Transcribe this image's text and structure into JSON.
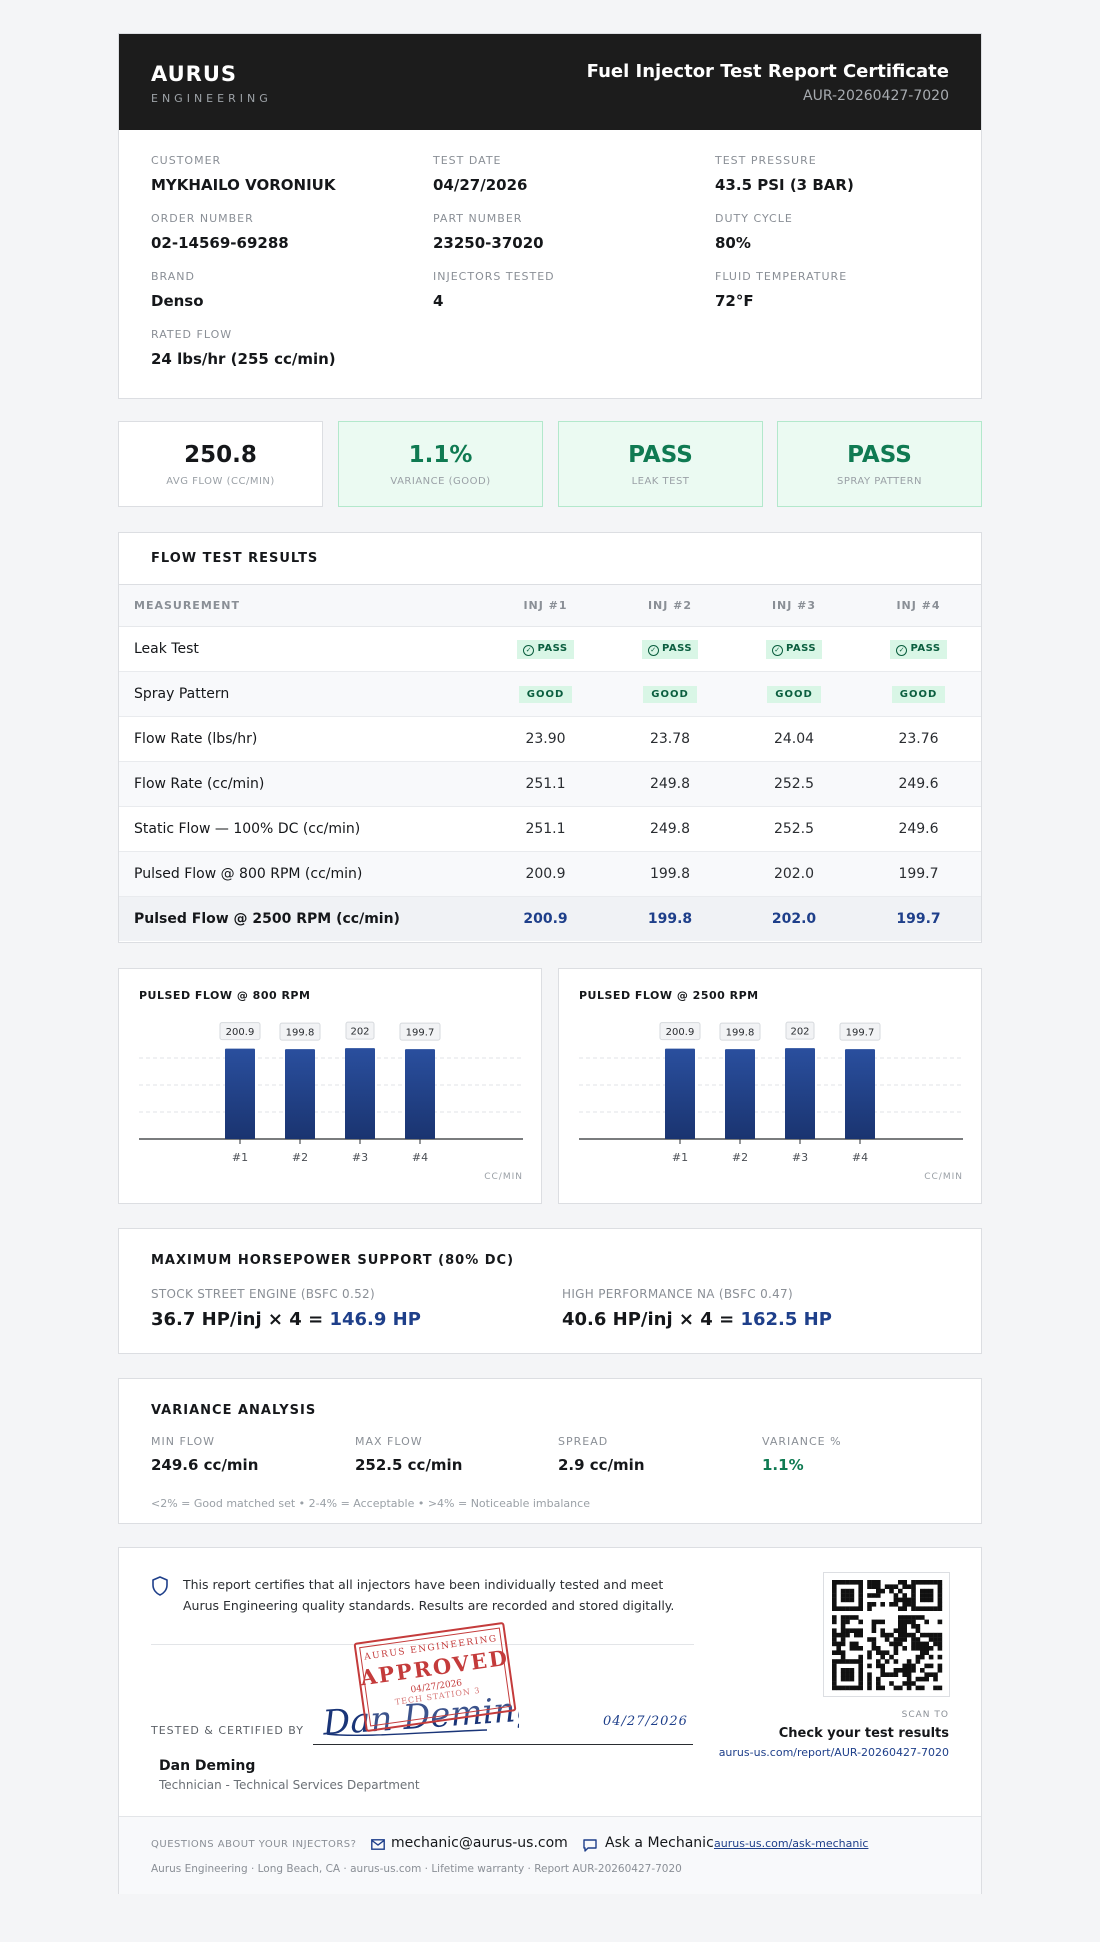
{
  "header": {
    "brand_name": "AURUS",
    "brand_sub": "ENGINEERING",
    "title": "Fuel Injector Test Report Certificate",
    "report_id": "AUR-20260427-7020"
  },
  "info": {
    "customer_label": "CUSTOMER",
    "customer": "MYKHAILO VORONIUK",
    "test_date_label": "TEST DATE",
    "test_date": "04/27/2026",
    "test_pressure_label": "TEST PRESSURE",
    "test_pressure": "43.5 PSI (3 BAR)",
    "order_label": "ORDER NUMBER",
    "order": "02-14569-69288",
    "part_label": "PART NUMBER",
    "part": "23250-37020",
    "duty_label": "DUTY CYCLE",
    "duty": "80%",
    "brand_label": "BRAND",
    "brand": "Denso",
    "injectors_label": "INJECTORS TESTED",
    "injectors": "4",
    "fluid_label": "FLUID TEMPERATURE",
    "fluid": "72°F",
    "rated_label": "RATED FLOW",
    "rated": "24 lbs/hr (255 cc/min)"
  },
  "summary": [
    {
      "value": "250.8",
      "label": "AVG FLOW (CC/MIN)"
    },
    {
      "value": "1.1%",
      "label": "VARIANCE (GOOD)"
    },
    {
      "value": "PASS",
      "label": "LEAK TEST"
    },
    {
      "value": "PASS",
      "label": "SPRAY PATTERN"
    }
  ],
  "flow": {
    "title": "FLOW TEST RESULTS",
    "headers": [
      "MEASUREMENT",
      "INJ #1",
      "INJ #2",
      "INJ #3",
      "INJ #4"
    ],
    "pass_text": "PASS",
    "good_text": "GOOD",
    "leak_label": "Leak Test",
    "spray_label": "Spray Pattern",
    "rows": [
      {
        "label": "Flow Rate (lbs/hr)",
        "values": [
          "23.90",
          "23.78",
          "24.04",
          "23.76"
        ]
      },
      {
        "label": "Flow Rate (cc/min)",
        "values": [
          "251.1",
          "249.8",
          "252.5",
          "249.6"
        ]
      },
      {
        "label": "Static Flow — 100% DC (cc/min)",
        "values": [
          "251.1",
          "249.8",
          "252.5",
          "249.6"
        ]
      },
      {
        "label": "Pulsed Flow @ 800 RPM (cc/min)",
        "values": [
          "200.9",
          "199.8",
          "202.0",
          "199.7"
        ]
      },
      {
        "label": "Pulsed Flow @ 2500 RPM (cc/min)",
        "values": [
          "200.9",
          "199.8",
          "202.0",
          "199.7"
        ]
      }
    ]
  },
  "chart_data": [
    {
      "type": "bar",
      "title": "PULSED FLOW @ 800 RPM",
      "categories": [
        "#1",
        "#2",
        "#3",
        "#4"
      ],
      "values": [
        200.9,
        199.8,
        202,
        199.7
      ],
      "value_labels": [
        "200.9",
        "199.8",
        "202",
        "199.7"
      ],
      "unit": "CC/MIN",
      "ylim": [
        0,
        210
      ],
      "grid": true
    },
    {
      "type": "bar",
      "title": "PULSED FLOW @ 2500 RPM",
      "categories": [
        "#1",
        "#2",
        "#3",
        "#4"
      ],
      "values": [
        200.9,
        199.8,
        202,
        199.7
      ],
      "value_labels": [
        "200.9",
        "199.8",
        "202",
        "199.7"
      ],
      "unit": "CC/MIN",
      "ylim": [
        0,
        210
      ],
      "grid": true
    }
  ],
  "horsepower": {
    "title": "MAXIMUM HORSEPOWER SUPPORT (80% DC)",
    "stock_label": "STOCK STREET ENGINE (BSFC 0.52)",
    "stock_base": "36.7 HP/inj × 4 =",
    "stock_total": "146.9 HP",
    "perf_label": "HIGH PERFORMANCE NA (BSFC 0.47)",
    "perf_base": "40.6 HP/inj × 4 =",
    "perf_total": "162.5 HP"
  },
  "variance": {
    "title": "VARIANCE ANALYSIS",
    "min_label": "MIN FLOW",
    "min": "249.6 cc/min",
    "max_label": "MAX FLOW",
    "max": "252.5 cc/min",
    "spread_label": "SPREAD",
    "spread": "2.9 cc/min",
    "pct_label": "VARIANCE %",
    "pct": "1.1%",
    "note": "<2% = Good matched set • 2-4% = Acceptable • >4% = Noticeable imbalance"
  },
  "cert": {
    "statement": "This report certifies that all injectors have been individually tested and meet Aurus Engineering quality standards. Results are recorded and stored digitally.",
    "tested_label": "TESTED & CERTIFIED BY",
    "signature": "Dan Deming",
    "sign_date": "04/27/2026",
    "stamp_top": "AURUS ENGINEERING",
    "stamp_main": "APPROVED",
    "stamp_date": "04/27/2026",
    "stamp_bottom": "TECH STATION 3",
    "tech_name": "Dan Deming",
    "tech_role": "Technician - Technical Services Department",
    "scan_to": "SCAN TO",
    "check_results": "Check your test results",
    "results_url": "aurus-us.com/report/AUR-20260427-7020"
  },
  "footer": {
    "questions": "QUESTIONS ABOUT YOUR INJECTORS?",
    "email": "mechanic@aurus-us.com",
    "ask": "Ask a Mechanic",
    "ask_link": "aurus-us.com/ask-mechanic",
    "line": "Aurus Engineering · Long Beach, CA · aurus-us.com · Lifetime warranty · Report AUR-20260427-7020"
  },
  "colors": {
    "accent": "#1e3f8a",
    "pass_green": "#0f7a52",
    "stamp_red": "#c43b3b"
  }
}
